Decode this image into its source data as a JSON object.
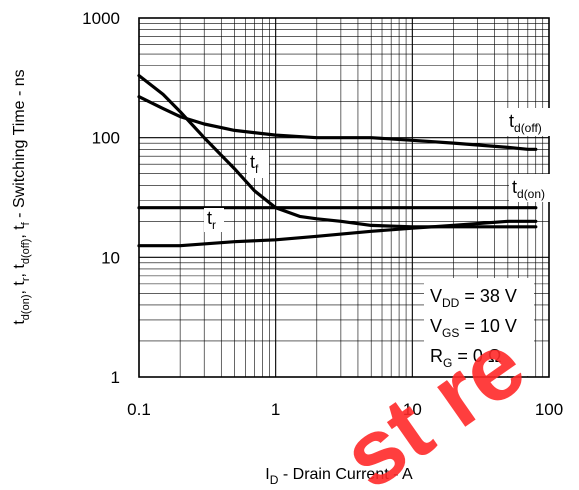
{
  "chart_data": {
    "type": "line",
    "xscale": "log",
    "yscale": "log",
    "xlim": [
      0.1,
      100
    ],
    "ylim": [
      1,
      1000
    ],
    "grid": true,
    "x_tick_labels": [
      "0.1",
      "1",
      "10",
      "100"
    ],
    "y_tick_labels": [
      "1",
      "10",
      "100",
      "1000"
    ],
    "xlabel": {
      "main": "I",
      "sub": "D",
      "rest": " - Drain Current - A"
    },
    "ylabel": "t_d(on), t_r, t_d(off), t_f - Switching Time - ns",
    "series": [
      {
        "name": "td(off)",
        "label": {
          "main": "t",
          "sub": "d(off)"
        },
        "x": [
          0.1,
          0.15,
          0.2,
          0.3,
          0.5,
          1,
          2,
          5,
          10,
          20,
          50,
          70,
          80
        ],
        "y": [
          220,
          175,
          150,
          130,
          115,
          105,
          100,
          100,
          95,
          90,
          83,
          80,
          80
        ]
      },
      {
        "name": "tf",
        "label": {
          "main": "t",
          "sub": "f"
        },
        "x": [
          0.1,
          0.15,
          0.2,
          0.3,
          0.5,
          0.7,
          1,
          1.5,
          2,
          3,
          5,
          10,
          20,
          40,
          60,
          80
        ],
        "y": [
          330,
          230,
          165,
          100,
          55,
          36,
          26,
          22,
          21,
          20,
          18.5,
          18,
          18,
          18,
          18,
          18
        ]
      },
      {
        "name": "td(on)",
        "label": {
          "main": "t",
          "sub": "d(on)"
        },
        "x": [
          0.1,
          80
        ],
        "y": [
          26,
          26
        ]
      },
      {
        "name": "tr",
        "label": {
          "main": "t",
          "sub": "r"
        },
        "x": [
          0.1,
          0.2,
          0.5,
          1,
          2,
          5,
          10,
          20,
          50,
          80
        ],
        "y": [
          12.5,
          12.5,
          13.5,
          14,
          15,
          16.5,
          17.5,
          18.5,
          20,
          20
        ]
      }
    ],
    "conditions": [
      {
        "main": "V",
        "sub": "DD",
        "rest": " = 38 V"
      },
      {
        "main": "V",
        "sub": "GS",
        "rest": " = 10 V"
      },
      {
        "main": "R",
        "sub": "G",
        "rest": " = 0 Ω"
      }
    ]
  },
  "watermark": "st re"
}
